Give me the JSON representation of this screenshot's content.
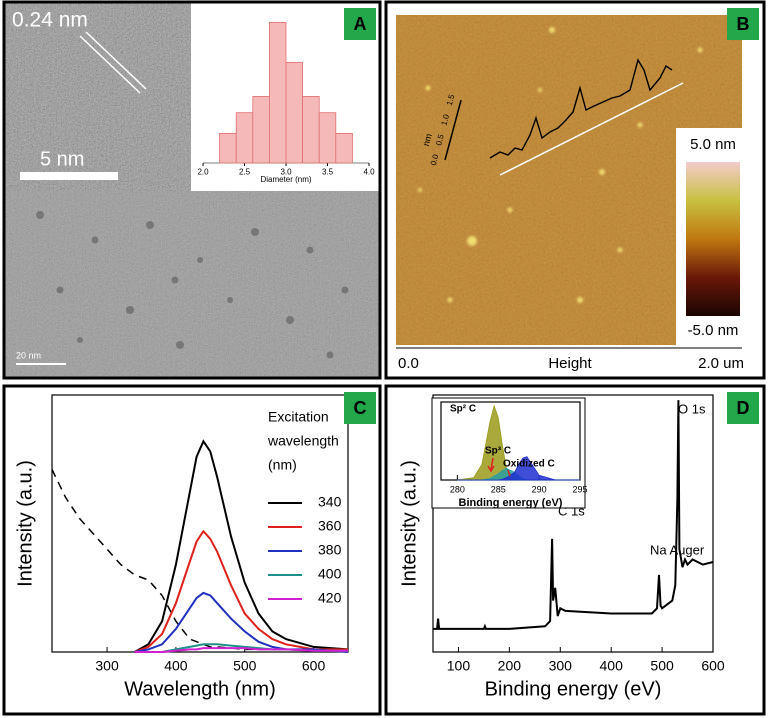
{
  "panel_labels": [
    "A",
    "B",
    "C",
    "D"
  ],
  "tem": {
    "lattice": "0.24 nm",
    "scale_top": "5 nm",
    "scale_bottom": "20 nm"
  },
  "afm": {
    "colorbar_max": "5.0 nm",
    "colorbar_min": "-5.0 nm",
    "axis_start": "0.0",
    "axis_label": "Height",
    "axis_end": "2.0 um",
    "profile_ticks": [
      "1.5",
      "1.0",
      "0.5",
      "0.0"
    ],
    "profile_unit": "nm"
  },
  "chart_data": [
    {
      "type": "histogram",
      "xlabel": "Diameter (nm)",
      "bins": [
        2.2,
        2.4,
        2.6,
        2.8,
        3.0,
        3.2,
        3.4,
        3.6,
        3.8
      ],
      "values": [
        20,
        34,
        45,
        95,
        68,
        45,
        34,
        20
      ],
      "color": "#f6b9b9",
      "edge": "#e07070",
      "xlim": [
        2.0,
        4.0
      ],
      "xticks": [
        {
          "value": 2,
          "label": "2.0"
        },
        2.5,
        {
          "value": 3,
          "label": "3.0"
        },
        3.5,
        {
          "value": 4,
          "label": "4.0"
        }
      ],
      "ylim": [
        0,
        100
      ]
    },
    {
      "type": "line",
      "xlabel": "Wavelength (nm)",
      "ylabel": "Intensity (a.u.)",
      "legend_title": [
        "Excitation",
        "wavelength",
        "(nm)"
      ],
      "x": [
        220,
        240,
        260,
        280,
        300,
        320,
        340,
        360,
        380,
        400,
        420,
        430,
        440,
        450,
        460,
        480,
        500,
        520,
        540,
        560,
        600,
        650
      ],
      "series": [
        {
          "style": "dashed",
          "color": "#000000",
          "values": [
            71,
            60,
            52,
            46,
            40,
            34,
            30,
            28,
            22,
            12,
            5,
            4,
            3,
            2,
            2,
            1.5,
            1,
            1,
            1,
            1,
            1,
            1
          ]
        },
        {
          "name": "340",
          "color": "#000000",
          "values": [
            null,
            null,
            null,
            null,
            null,
            null,
            0,
            3,
            12,
            34,
            62,
            76,
            82,
            78,
            68,
            45,
            27,
            15,
            8,
            5,
            2,
            1
          ]
        },
        {
          "name": "360",
          "color": "#e0201a",
          "values": [
            null,
            null,
            null,
            null,
            null,
            null,
            0,
            2,
            7,
            19,
            35,
            43,
            47,
            44,
            39,
            26,
            15,
            9,
            5,
            3,
            1,
            1
          ]
        },
        {
          "name": "380",
          "color": "#2030c0",
          "values": [
            null,
            null,
            null,
            null,
            null,
            null,
            0,
            1,
            3,
            9,
            17,
            21,
            23,
            22,
            19,
            13,
            8,
            4,
            2,
            1,
            1,
            0
          ]
        },
        {
          "name": "400",
          "color": "#1e908a",
          "values": [
            null,
            null,
            null,
            null,
            null,
            null,
            0,
            0,
            0,
            1,
            2,
            2.5,
            3,
            3,
            3,
            2.5,
            2,
            1.5,
            1,
            1,
            0.5,
            0.5
          ]
        },
        {
          "name": "420",
          "color": "#d020d0",
          "values": [
            null,
            null,
            null,
            null,
            null,
            null,
            0,
            0,
            0,
            0.5,
            1,
            1,
            1.5,
            1.5,
            1.5,
            1.5,
            1.5,
            1,
            1,
            1,
            0.5,
            0.5
          ]
        }
      ],
      "xlim": [
        220,
        650
      ],
      "xticks": [
        300,
        400,
        500,
        600
      ],
      "ylim": [
        0,
        100
      ]
    },
    {
      "type": "line",
      "xlabel": "Binding energy (eV)",
      "ylabel": "Intensity (a.u.)",
      "annotations": [
        "O 1s",
        "Na Auger",
        "C 1s"
      ],
      "x": [
        50,
        58,
        60,
        62,
        100,
        150,
        152,
        154,
        200,
        270,
        280,
        284,
        286,
        290,
        295,
        300,
        310,
        400,
        480,
        490,
        494,
        497,
        500,
        520,
        526,
        530,
        532,
        534,
        540,
        545,
        550,
        560,
        580,
        600
      ],
      "series": [
        {
          "color": "#000000",
          "values": [
            9,
            9,
            13,
            9,
            9,
            9,
            10,
            9,
            9,
            10,
            12,
            44,
            20,
            25,
            14,
            17,
            16,
            15,
            15,
            17,
            30,
            18,
            17,
            20,
            26,
            60,
            98,
            40,
            33,
            36,
            34,
            36,
            34,
            35
          ]
        }
      ],
      "xlim": [
        50,
        600
      ],
      "xticks": [
        100,
        200,
        300,
        400,
        500,
        600
      ],
      "ylim": [
        0,
        100
      ]
    },
    {
      "type": "area",
      "xlabel": "Binding energy (eV)",
      "annotations": [
        "Sp² C",
        "Sp³ C",
        "Oxidized C"
      ],
      "x": [
        280,
        282,
        283,
        284,
        284.5,
        285,
        285.5,
        286,
        287,
        287.5,
        288,
        288.5,
        289,
        290,
        292,
        295
      ],
      "series": [
        {
          "color": "#9a9a1a",
          "values": [
            0,
            3,
            20,
            75,
            95,
            80,
            45,
            15,
            2,
            0,
            0,
            0,
            0,
            0,
            0,
            0
          ]
        },
        {
          "color": "#2aa0a0",
          "values": [
            0,
            0,
            0,
            2,
            5,
            8,
            12,
            15,
            10,
            5,
            2,
            0,
            0,
            0,
            0,
            0
          ]
        },
        {
          "color": "#1f2fd0",
          "values": [
            0,
            0,
            0,
            0,
            0,
            0,
            1,
            3,
            10,
            20,
            28,
            30,
            22,
            6,
            0,
            0
          ]
        }
      ],
      "xlim": [
        278,
        295
      ],
      "xticks": [
        280,
        285,
        290,
        295
      ],
      "ylim": [
        0,
        100
      ]
    }
  ]
}
